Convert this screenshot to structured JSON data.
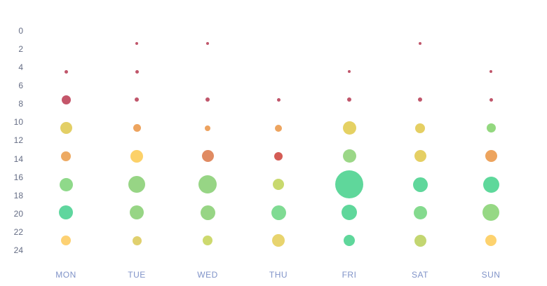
{
  "colors": {
    "background": "#ffffff",
    "x_axis_label_color": "#8093c8",
    "y_axis_label_color": "#646c84",
    "scale_low_red": "#c0566b",
    "scale_orange": "#edaa63",
    "scale_yellow": "#e5cf63",
    "scale_light_green": "#97d585",
    "scale_high_green": "#5fd79b"
  },
  "chart_data": {
    "type": "scatter",
    "subtype": "punch-card-bubble",
    "title": "",
    "xlabel": "",
    "ylabel": "",
    "grid": false,
    "legend": false,
    "x_categories": [
      "MON",
      "TUE",
      "WED",
      "THU",
      "FRI",
      "SAT",
      "SUN"
    ],
    "y_axis": {
      "min": 0,
      "max": 24,
      "tick_step": 2,
      "inverted_top_to_bottom": true
    },
    "y_ticks": [
      0,
      2,
      4,
      6,
      8,
      10,
      12,
      14,
      16,
      18,
      20,
      22,
      24
    ],
    "hour_buckets": [
      1.5,
      4.5,
      7.5,
      10.5,
      13.5,
      16.5,
      19.5,
      22.5
    ],
    "encoding": {
      "size": "value encoded as bubble diameter in px",
      "color": "value low to high: red, orange, yellow, light green, emerald green"
    },
    "points": [
      {
        "day": "MON",
        "hour": 4.5,
        "diameter": 5,
        "color": "#c0566b"
      },
      {
        "day": "MON",
        "hour": 7.5,
        "diameter": 13,
        "color": "#c4566a"
      },
      {
        "day": "MON",
        "hour": 10.5,
        "diameter": 17,
        "color": "#e3cf66"
      },
      {
        "day": "MON",
        "hour": 13.5,
        "diameter": 14,
        "color": "#edaa63"
      },
      {
        "day": "MON",
        "hour": 16.5,
        "diameter": 19,
        "color": "#8fd98a"
      },
      {
        "day": "MON",
        "hour": 19.5,
        "diameter": 20,
        "color": "#5fd69e"
      },
      {
        "day": "MON",
        "hour": 22.5,
        "diameter": 14,
        "color": "#fdd173"
      },
      {
        "day": "TUE",
        "hour": 1.5,
        "diameter": 4,
        "color": "#c0566b"
      },
      {
        "day": "TUE",
        "hour": 4.5,
        "diameter": 5,
        "color": "#c0566b"
      },
      {
        "day": "TUE",
        "hour": 7.5,
        "diameter": 6,
        "color": "#c0566b"
      },
      {
        "day": "TUE",
        "hour": 10.5,
        "diameter": 11,
        "color": "#eda45f"
      },
      {
        "day": "TUE",
        "hour": 13.5,
        "diameter": 18,
        "color": "#fcd169"
      },
      {
        "day": "TUE",
        "hour": 16.5,
        "diameter": 24,
        "color": "#97d585"
      },
      {
        "day": "TUE",
        "hour": 19.5,
        "diameter": 20,
        "color": "#97d585"
      },
      {
        "day": "TUE",
        "hour": 22.5,
        "diameter": 13,
        "color": "#e0d06e"
      },
      {
        "day": "WED",
        "hour": 1.5,
        "diameter": 4,
        "color": "#c0566b"
      },
      {
        "day": "WED",
        "hour": 7.5,
        "diameter": 6,
        "color": "#c0566b"
      },
      {
        "day": "WED",
        "hour": 10.5,
        "diameter": 8,
        "color": "#eda25f"
      },
      {
        "day": "WED",
        "hour": 13.5,
        "diameter": 17,
        "color": "#e08b62"
      },
      {
        "day": "WED",
        "hour": 16.5,
        "diameter": 26,
        "color": "#97d585"
      },
      {
        "day": "WED",
        "hour": 19.5,
        "diameter": 21,
        "color": "#97d585"
      },
      {
        "day": "WED",
        "hour": 22.5,
        "diameter": 14,
        "color": "#cdd96e"
      },
      {
        "day": "THU",
        "hour": 7.5,
        "diameter": 5,
        "color": "#c0566b"
      },
      {
        "day": "THU",
        "hour": 10.5,
        "diameter": 10,
        "color": "#eda45f"
      },
      {
        "day": "THU",
        "hour": 13.5,
        "diameter": 12,
        "color": "#d45c55"
      },
      {
        "day": "THU",
        "hour": 16.5,
        "diameter": 16,
        "color": "#c8d96e"
      },
      {
        "day": "THU",
        "hour": 19.5,
        "diameter": 21,
        "color": "#7fdb93"
      },
      {
        "day": "THU",
        "hour": 22.5,
        "diameter": 18,
        "color": "#e8d46e"
      },
      {
        "day": "FRI",
        "hour": 4.5,
        "diameter": 4,
        "color": "#c0566b"
      },
      {
        "day": "FRI",
        "hour": 7.5,
        "diameter": 6,
        "color": "#c0566b"
      },
      {
        "day": "FRI",
        "hour": 10.5,
        "diameter": 19,
        "color": "#e5d163"
      },
      {
        "day": "FRI",
        "hour": 13.5,
        "diameter": 19,
        "color": "#9bd787"
      },
      {
        "day": "FRI",
        "hour": 16.5,
        "diameter": 40,
        "color": "#5fd79b"
      },
      {
        "day": "FRI",
        "hour": 19.5,
        "diameter": 22,
        "color": "#5fd79b"
      },
      {
        "day": "FRI",
        "hour": 22.5,
        "diameter": 16,
        "color": "#5fd79b"
      },
      {
        "day": "SAT",
        "hour": 1.5,
        "diameter": 4,
        "color": "#c0566b"
      },
      {
        "day": "SAT",
        "hour": 7.5,
        "diameter": 6,
        "color": "#c0566b"
      },
      {
        "day": "SAT",
        "hour": 10.5,
        "diameter": 14,
        "color": "#e5cf63"
      },
      {
        "day": "SAT",
        "hour": 13.5,
        "diameter": 17,
        "color": "#e5cf63"
      },
      {
        "day": "SAT",
        "hour": 16.5,
        "diameter": 21,
        "color": "#5fd79b"
      },
      {
        "day": "SAT",
        "hour": 19.5,
        "diameter": 19,
        "color": "#84da8e"
      },
      {
        "day": "SAT",
        "hour": 22.5,
        "diameter": 17,
        "color": "#c3d671"
      },
      {
        "day": "SUN",
        "hour": 4.5,
        "diameter": 4,
        "color": "#c0566b"
      },
      {
        "day": "SUN",
        "hour": 7.5,
        "diameter": 5,
        "color": "#c0566b"
      },
      {
        "day": "SUN",
        "hour": 10.5,
        "diameter": 13,
        "color": "#93d87f"
      },
      {
        "day": "SUN",
        "hour": 13.5,
        "diameter": 17,
        "color": "#eda45e"
      },
      {
        "day": "SUN",
        "hour": 16.5,
        "diameter": 23,
        "color": "#5ed89b"
      },
      {
        "day": "SUN",
        "hour": 19.5,
        "diameter": 24,
        "color": "#96d884"
      },
      {
        "day": "SUN",
        "hour": 22.5,
        "diameter": 16,
        "color": "#fdd26e"
      }
    ]
  }
}
